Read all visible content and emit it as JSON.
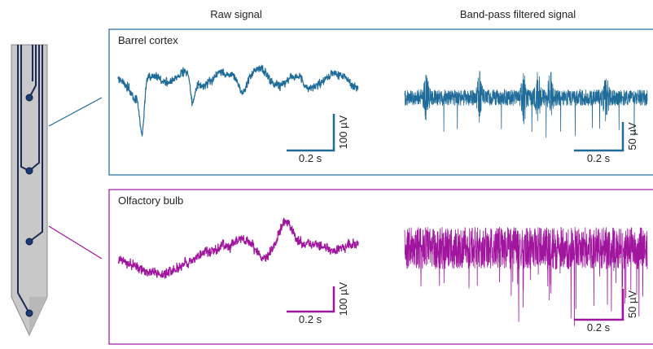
{
  "columns": [
    "Raw signal",
    "Band-pass filtered signal"
  ],
  "panels": [
    {
      "label": "Barrel cortex",
      "color": "#1f6b9a",
      "raw_scale": {
        "y": "100 µV",
        "x": "0.2 s"
      },
      "filtered_scale": {
        "y": "50 µV",
        "x": "0.2 s"
      }
    },
    {
      "label": "Olfactory bulb",
      "color": "#a0149e",
      "raw_scale": {
        "y": "100 µV",
        "x": "0.2 s"
      },
      "filtered_scale": {
        "y": "50 µV",
        "x": "0.2 s"
      }
    }
  ]
}
